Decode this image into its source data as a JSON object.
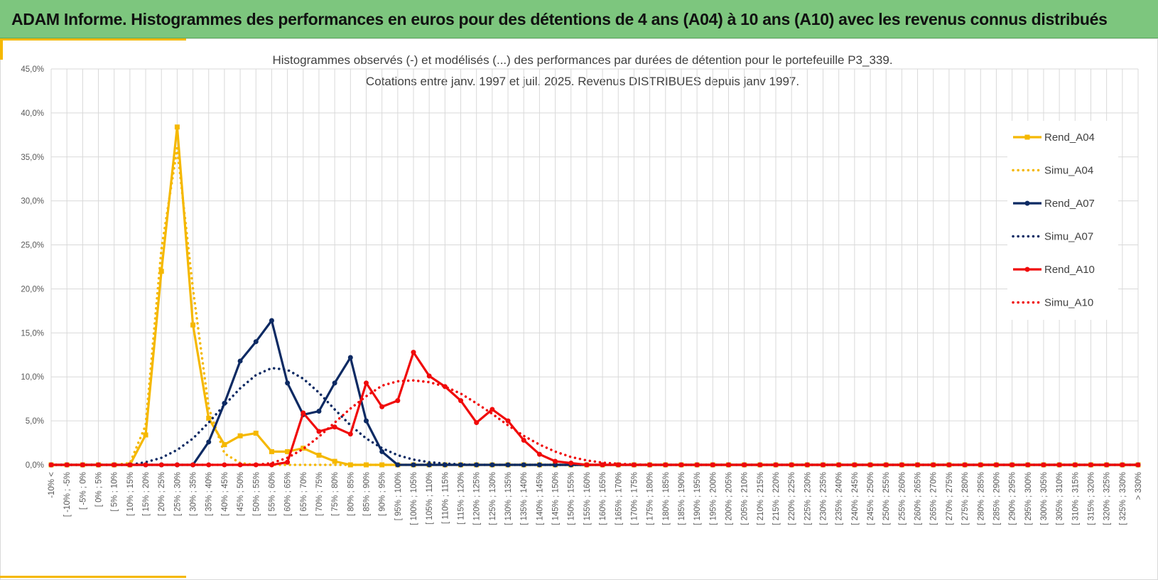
{
  "header": {
    "title": "ADAM Informe. Histogrammes des performances en euros pour des détentions de 4 ans (A04) à 10 ans (A10) avec les revenus connus distribués"
  },
  "colors": {
    "banner": "#7dc67e",
    "accent": "#f5b800",
    "A04": "#f5b800",
    "A07": "#0d2a63",
    "A10": "#f00a0a"
  },
  "chart_data": {
    "type": "line",
    "title_lines": [
      "Histogrammes observés (-) et modélisés (...) des performances par durées de détention pour le portefeuille P3_339.",
      "Cotations entre janv. 1997 et juil. 2025. Revenus DISTRIBUES depuis janv 1997."
    ],
    "xlabel": "",
    "ylabel": "",
    "ylim": [
      0,
      45
    ],
    "y_ticks": [
      "0,0%",
      "5,0%",
      "10,0%",
      "15,0%",
      "20,0%",
      "25,0%",
      "30,0%",
      "35,0%",
      "40,0%",
      "45,0%"
    ],
    "grid": true,
    "legend_position": "right",
    "categories": [
      "-10% <",
      "[ -10% ; -5%",
      "[ -5% ; 0%",
      "[ 0% ; 5%",
      "[ 5% ; 10%",
      "[ 10% ; 15%",
      "[ 15% ; 20%",
      "[ 20% ; 25%",
      "[ 25% ; 30%",
      "[ 30% ; 35%",
      "[ 35% ; 40%",
      "[ 40% ; 45%",
      "[ 45% ; 50%",
      "[ 50% ; 55%",
      "[ 55% ; 60%",
      "[ 60% ; 65%",
      "[ 65% ; 70%",
      "[ 70% ; 75%",
      "[ 75% ; 80%",
      "[ 80% ; 85%",
      "[ 85% ; 90%",
      "[ 90% ; 95%",
      "[ 95% ; 100%",
      "[ 100% ; 105%",
      "[ 105% ; 110%",
      "[ 110% ; 115%",
      "[ 115% ; 120%",
      "[ 120% ; 125%",
      "[ 125% ; 130%",
      "[ 130% ; 135%",
      "[ 135% ; 140%",
      "[ 140% ; 145%",
      "[ 145% ; 150%",
      "[ 150% ; 155%",
      "[ 155% ; 160%",
      "[ 160% ; 165%",
      "[ 165% ; 170%",
      "[ 170% ; 175%",
      "[ 175% ; 180%",
      "[ 180% ; 185%",
      "[ 185% ; 190%",
      "[ 190% ; 195%",
      "[ 195% ; 200%",
      "[ 200% ; 205%",
      "[ 205% ; 210%",
      "[ 210% ; 215%",
      "[ 215% ; 220%",
      "[ 220% ; 225%",
      "[ 225% ; 230%",
      "[ 230% ; 235%",
      "[ 235% ; 240%",
      "[ 240% ; 245%",
      "[ 245% ; 250%",
      "[ 250% ; 255%",
      "[ 255% ; 260%",
      "[ 260% ; 265%",
      "[ 265% ; 270%",
      "[ 270% ; 275%",
      "[ 275% ; 280%",
      "[ 280% ; 285%",
      "[ 285% ; 290%",
      "[ 290% ; 295%",
      "[ 295% ; 300%",
      "[ 300% ; 305%",
      "[ 305% ; 310%",
      "[ 310% ; 315%",
      "[ 315% ; 320%",
      "[ 320% ; 325%",
      "[ 325% ; 330%",
      "> 330%"
    ],
    "series": [
      {
        "name": "Rend_A04",
        "style": "solid",
        "color": "#f5b800",
        "marker": "square",
        "values": [
          0,
          0,
          0,
          0,
          0,
          0,
          3.4,
          22,
          38.4,
          15.9,
          5.3,
          2.3,
          3.3,
          3.6,
          1.5,
          1.5,
          1.9,
          1.1,
          0.4,
          0,
          0,
          0,
          0,
          0,
          0,
          0,
          0,
          0,
          0,
          0,
          0,
          0,
          0,
          0,
          0,
          0,
          0,
          0,
          0,
          0,
          0,
          0,
          0,
          0,
          0,
          0,
          0,
          0,
          0,
          0,
          0,
          0,
          0,
          0,
          0,
          0,
          0,
          0,
          0,
          0,
          0,
          0,
          0,
          0,
          0,
          0,
          0,
          0,
          0,
          0
        ]
      },
      {
        "name": "Simu_A04",
        "style": "dotted",
        "color": "#f5b800",
        "values": [
          0,
          0,
          0,
          0,
          0,
          0.2,
          4.5,
          24.5,
          36,
          20,
          6.5,
          1.3,
          0.2,
          0,
          0,
          0,
          0,
          0,
          0,
          0,
          0,
          0,
          0,
          0,
          0,
          0,
          0,
          0,
          0,
          0,
          0,
          0,
          0,
          0,
          0,
          0,
          0,
          0,
          0,
          0,
          0,
          0,
          0,
          0,
          0,
          0,
          0,
          0,
          0,
          0,
          0,
          0,
          0,
          0,
          0,
          0,
          0,
          0,
          0,
          0,
          0,
          0,
          0,
          0,
          0,
          0,
          0,
          0,
          0,
          0
        ]
      },
      {
        "name": "Rend_A07",
        "style": "solid",
        "color": "#0d2a63",
        "marker": "circle",
        "values": [
          0,
          0,
          0,
          0,
          0,
          0,
          0,
          0,
          0,
          0,
          2.6,
          7,
          11.8,
          14,
          16.4,
          9.3,
          5.7,
          6.1,
          9.3,
          12.2,
          5,
          1.5,
          0,
          0,
          0,
          0,
          0,
          0,
          0,
          0,
          0,
          0,
          0,
          0,
          0,
          0,
          0,
          0,
          0,
          0,
          0,
          0,
          0,
          0,
          0,
          0,
          0,
          0,
          0,
          0,
          0,
          0,
          0,
          0,
          0,
          0,
          0,
          0,
          0,
          0,
          0,
          0,
          0,
          0,
          0,
          0,
          0,
          0,
          0,
          0
        ]
      },
      {
        "name": "Simu_A07",
        "style": "dotted",
        "color": "#0d2a63",
        "values": [
          0,
          0,
          0,
          0,
          0,
          0,
          0.3,
          0.8,
          1.7,
          3,
          4.8,
          6.8,
          8.7,
          10.2,
          11,
          10.8,
          9.8,
          8.2,
          6.3,
          4.5,
          3,
          1.9,
          1.1,
          0.6,
          0.3,
          0.15,
          0.05,
          0,
          0,
          0,
          0,
          0,
          0,
          0,
          0,
          0,
          0,
          0,
          0,
          0,
          0,
          0,
          0,
          0,
          0,
          0,
          0,
          0,
          0,
          0,
          0,
          0,
          0,
          0,
          0,
          0,
          0,
          0,
          0,
          0,
          0,
          0,
          0,
          0,
          0,
          0,
          0,
          0,
          0,
          0
        ]
      },
      {
        "name": "Rend_A10",
        "style": "solid",
        "color": "#f00a0a",
        "marker": "circle",
        "values": [
          0,
          0,
          0,
          0,
          0,
          0,
          0,
          0,
          0,
          0,
          0,
          0,
          0,
          0,
          0,
          0.3,
          5.9,
          3.8,
          4.3,
          3.5,
          9.3,
          6.6,
          7.3,
          12.8,
          10.1,
          8.9,
          7.3,
          4.8,
          6.3,
          5,
          2.8,
          1.2,
          0.4,
          0.2,
          0,
          0,
          0,
          0,
          0,
          0,
          0,
          0,
          0,
          0,
          0,
          0,
          0,
          0,
          0,
          0,
          0,
          0,
          0,
          0,
          0,
          0,
          0,
          0,
          0,
          0,
          0,
          0,
          0,
          0,
          0,
          0,
          0,
          0,
          0,
          0
        ]
      },
      {
        "name": "Simu_A10",
        "style": "dotted",
        "color": "#f00a0a",
        "values": [
          0,
          0,
          0,
          0,
          0,
          0,
          0,
          0,
          0,
          0,
          0,
          0,
          0,
          0,
          0.2,
          0.8,
          1.8,
          3.2,
          4.8,
          6.4,
          7.8,
          9,
          9.5,
          9.6,
          9.4,
          8.9,
          8.1,
          7,
          5.8,
          4.5,
          3.3,
          2.3,
          1.5,
          0.9,
          0.5,
          0.25,
          0.12,
          0.05,
          0,
          0,
          0,
          0,
          0,
          0,
          0,
          0,
          0,
          0,
          0,
          0,
          0,
          0,
          0,
          0,
          0,
          0,
          0,
          0,
          0,
          0,
          0,
          0,
          0,
          0,
          0,
          0,
          0,
          0,
          0,
          0
        ]
      }
    ]
  }
}
